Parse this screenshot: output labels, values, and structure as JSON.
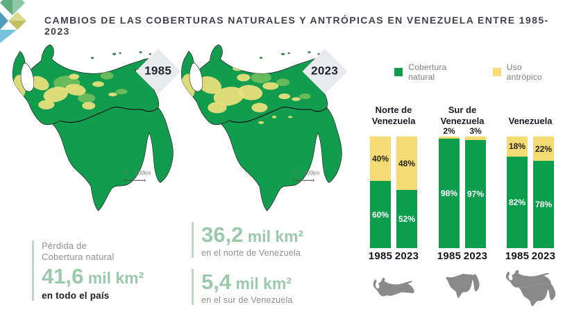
{
  "header": {
    "title": "CAMBIOS DE LAS COBERTURAS NATURALES Y ANTRÓPICAS EN VENEZUELA ENTRE 1985-2023"
  },
  "maps": {
    "map_1985": {
      "year": "1985"
    },
    "map_2023": {
      "year": "2023"
    },
    "scale": {
      "zero": "0",
      "distance": "200km"
    }
  },
  "legend": {
    "natural": "Cobertura natural",
    "anthropic": "Uso antrópico"
  },
  "colors": {
    "natural_green": "#0C9E4D",
    "anthropic_yellow": "#F5DB74",
    "map_green": "#119C4E",
    "map_yellow": "#E7DF7B",
    "stat_green": "#9BC9AB",
    "silhouette_gray": "#8A8A8A",
    "green_label": "#FFFFFF",
    "yellow_label": "#242419"
  },
  "chart_data": {
    "type": "bar",
    "stacked": true,
    "unit": "%",
    "categories": [
      "1985",
      "2023"
    ],
    "ylim": [
      0,
      100
    ],
    "legend": [
      "Cobertura natural",
      "Uso antrópico"
    ],
    "legend_position": "top",
    "groups": [
      {
        "name": "Norte de Venezuela",
        "name_lines": [
          "Norte de",
          "Venezuela"
        ],
        "series": [
          {
            "name": "Cobertura natural",
            "values": [
              60,
              52
            ]
          },
          {
            "name": "Uso antrópico",
            "values": [
              40,
              48
            ]
          }
        ]
      },
      {
        "name": "Sur de Venezuela",
        "name_lines": [
          "Sur de",
          "Venezuela"
        ],
        "series": [
          {
            "name": "Cobertura natural",
            "values": [
              98,
              97
            ]
          },
          {
            "name": "Uso antrópico",
            "values": [
              2,
              3
            ]
          }
        ]
      },
      {
        "name": "Venezuela",
        "name_lines": [
          "Venezuela"
        ],
        "series": [
          {
            "name": "Cobertura natural",
            "values": [
              82,
              78
            ]
          },
          {
            "name": "Uso antrópico",
            "values": [
              18,
              22
            ]
          }
        ]
      }
    ]
  },
  "stats": {
    "title_top": "Pérdida de",
    "title_bottom": "Cobertura natural",
    "country": {
      "value": "41,6",
      "unit": " mil km²",
      "caption": "en todo el país"
    },
    "north": {
      "value": "36,2",
      "unit": " mil km²",
      "caption": "en el norte de Venezuela"
    },
    "south": {
      "value": "5,4",
      "unit": " mil km²",
      "caption": "en el sur de Venezuela"
    }
  }
}
